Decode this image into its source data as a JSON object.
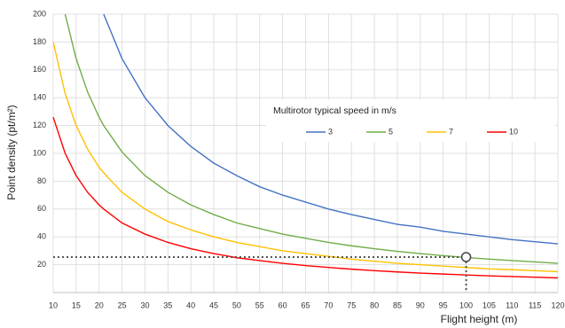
{
  "chart_data": {
    "type": "line",
    "xlabel": "Flight height (m)",
    "ylabel": "Point density (pt/m²)",
    "legend_title": "Multirotor typical speed in m/s",
    "legend_position": "upper right",
    "grid": true,
    "xlim": [
      10,
      120
    ],
    "ylim": [
      0,
      200
    ],
    "xticks": [
      10,
      15,
      20,
      25,
      30,
      35,
      40,
      45,
      50,
      55,
      60,
      65,
      70,
      75,
      80,
      85,
      90,
      95,
      100,
      105,
      110,
      115,
      120
    ],
    "yticks": [
      20,
      40,
      60,
      80,
      100,
      120,
      140,
      160,
      180,
      200
    ],
    "x": [
      10,
      12.6,
      15,
      17.5,
      20,
      21,
      25,
      30,
      35,
      40,
      45,
      50,
      55,
      60,
      65,
      70,
      75,
      80,
      85,
      90,
      95,
      100,
      105,
      110,
      115,
      120
    ],
    "series": [
      {
        "name": "3",
        "color": "#4472c4",
        "values": [
          null,
          null,
          null,
          null,
          null,
          200,
          168,
          140,
          120,
          105,
          93,
          84,
          76,
          70,
          65,
          60,
          56,
          52.5,
          49,
          47,
          44,
          42,
          40,
          38,
          36.5,
          35
        ]
      },
      {
        "name": "5",
        "color": "#70ad47",
        "values": [
          null,
          200,
          168,
          144,
          126,
          120,
          101,
          84,
          72,
          63,
          56,
          50,
          46,
          42,
          39,
          36,
          33.6,
          31.5,
          29.6,
          28,
          26.5,
          25.2,
          24,
          23,
          22,
          21
        ]
      },
      {
        "name": "7",
        "color": "#ffc000",
        "values": [
          180,
          143,
          120,
          103,
          90,
          86,
          72,
          60,
          51,
          45,
          40,
          36,
          33,
          30,
          28,
          26,
          24,
          22.5,
          21,
          20,
          19,
          18,
          17,
          16.4,
          15.7,
          15
        ]
      },
      {
        "name": "10",
        "color": "#ff0000",
        "values": [
          126,
          100,
          84,
          72,
          63,
          60,
          50,
          42,
          36,
          31.5,
          28,
          25,
          23,
          21,
          19.4,
          18,
          16.8,
          15.75,
          14.8,
          14,
          13.3,
          12.6,
          12,
          11.5,
          11,
          10.5
        ]
      }
    ],
    "marker": {
      "x": 100,
      "y": 25.5
    }
  }
}
